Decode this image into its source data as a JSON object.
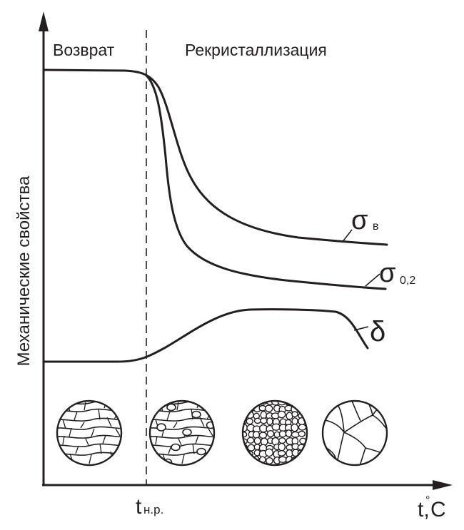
{
  "regions": {
    "left": "Возврат",
    "right": "Рекристаллизация"
  },
  "y_axis_label": "Механические свойства",
  "x_axis": {
    "symbol": "t,",
    "degree": "°",
    "unit": "C",
    "threshold_main": "t",
    "threshold_sub": "н.р."
  },
  "curves": {
    "sigma_b": {
      "symbol": "σ",
      "sub": "в"
    },
    "sigma_02": {
      "symbol": "σ",
      "sub": "0,2"
    },
    "delta": {
      "symbol": "δ"
    }
  },
  "microstructures": [
    "cold-worked",
    "nucleation",
    "fine-grained",
    "coarse-grained"
  ],
  "colors": {
    "ink": "#231f20",
    "background": "#ffffff"
  }
}
